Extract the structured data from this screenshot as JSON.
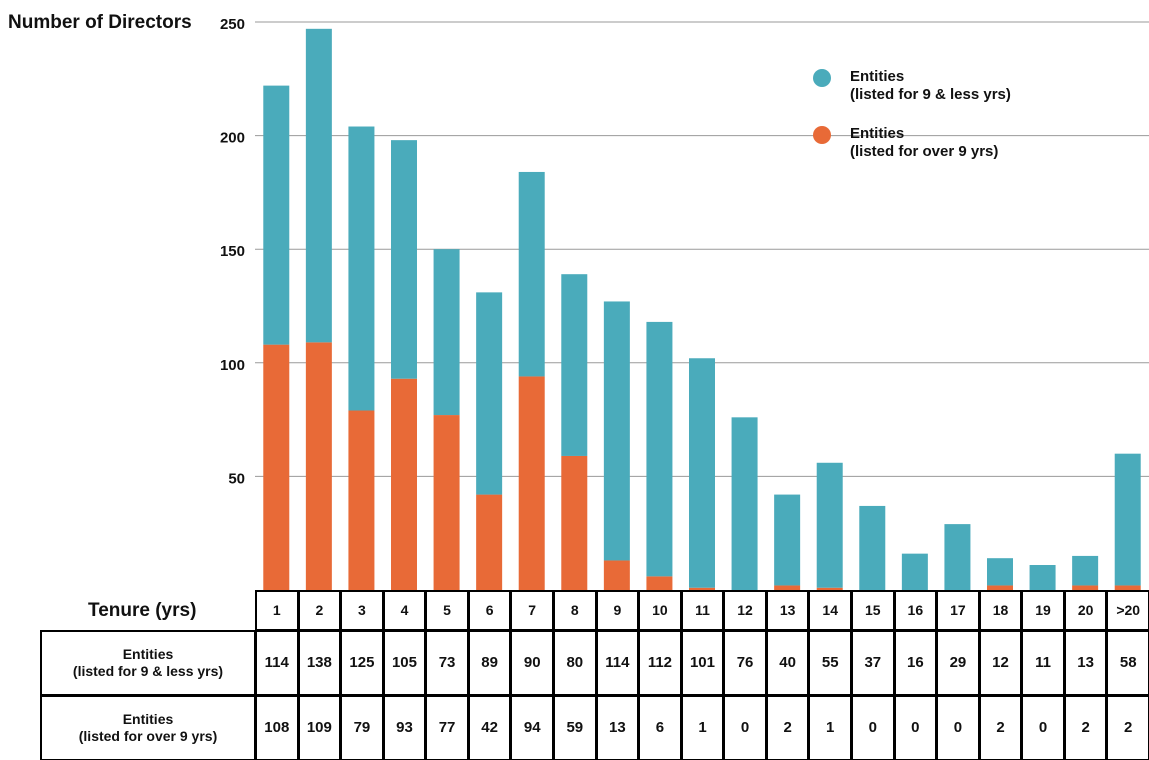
{
  "chart_data": {
    "type": "stacked-bar",
    "y_label": "Number of Directors",
    "x_label": "Tenure (yrs)",
    "categories": [
      "1",
      "2",
      "3",
      "4",
      "5",
      "6",
      "7",
      "8",
      "9",
      "10",
      "11",
      "12",
      "13",
      "14",
      "15",
      "16",
      "17",
      "18",
      "19",
      "20",
      ">20"
    ],
    "series": [
      {
        "name": "Entities\n(listed for over 9 yrs)",
        "color": "#e86a37",
        "values": [
          108,
          109,
          79,
          93,
          77,
          42,
          94,
          59,
          13,
          6,
          1,
          0,
          2,
          1,
          0,
          0,
          0,
          2,
          0,
          2,
          2
        ]
      },
      {
        "name": "Entities\n(listed for 9 & less yrs)",
        "color": "#4aabbb",
        "values": [
          114,
          138,
          125,
          105,
          73,
          89,
          90,
          80,
          114,
          112,
          101,
          76,
          40,
          55,
          37,
          16,
          29,
          12,
          11,
          13,
          58
        ]
      }
    ],
    "ylim": [
      0,
      250
    ],
    "yticks": [
      50,
      100,
      150,
      200,
      250
    ],
    "grid": true
  }
}
